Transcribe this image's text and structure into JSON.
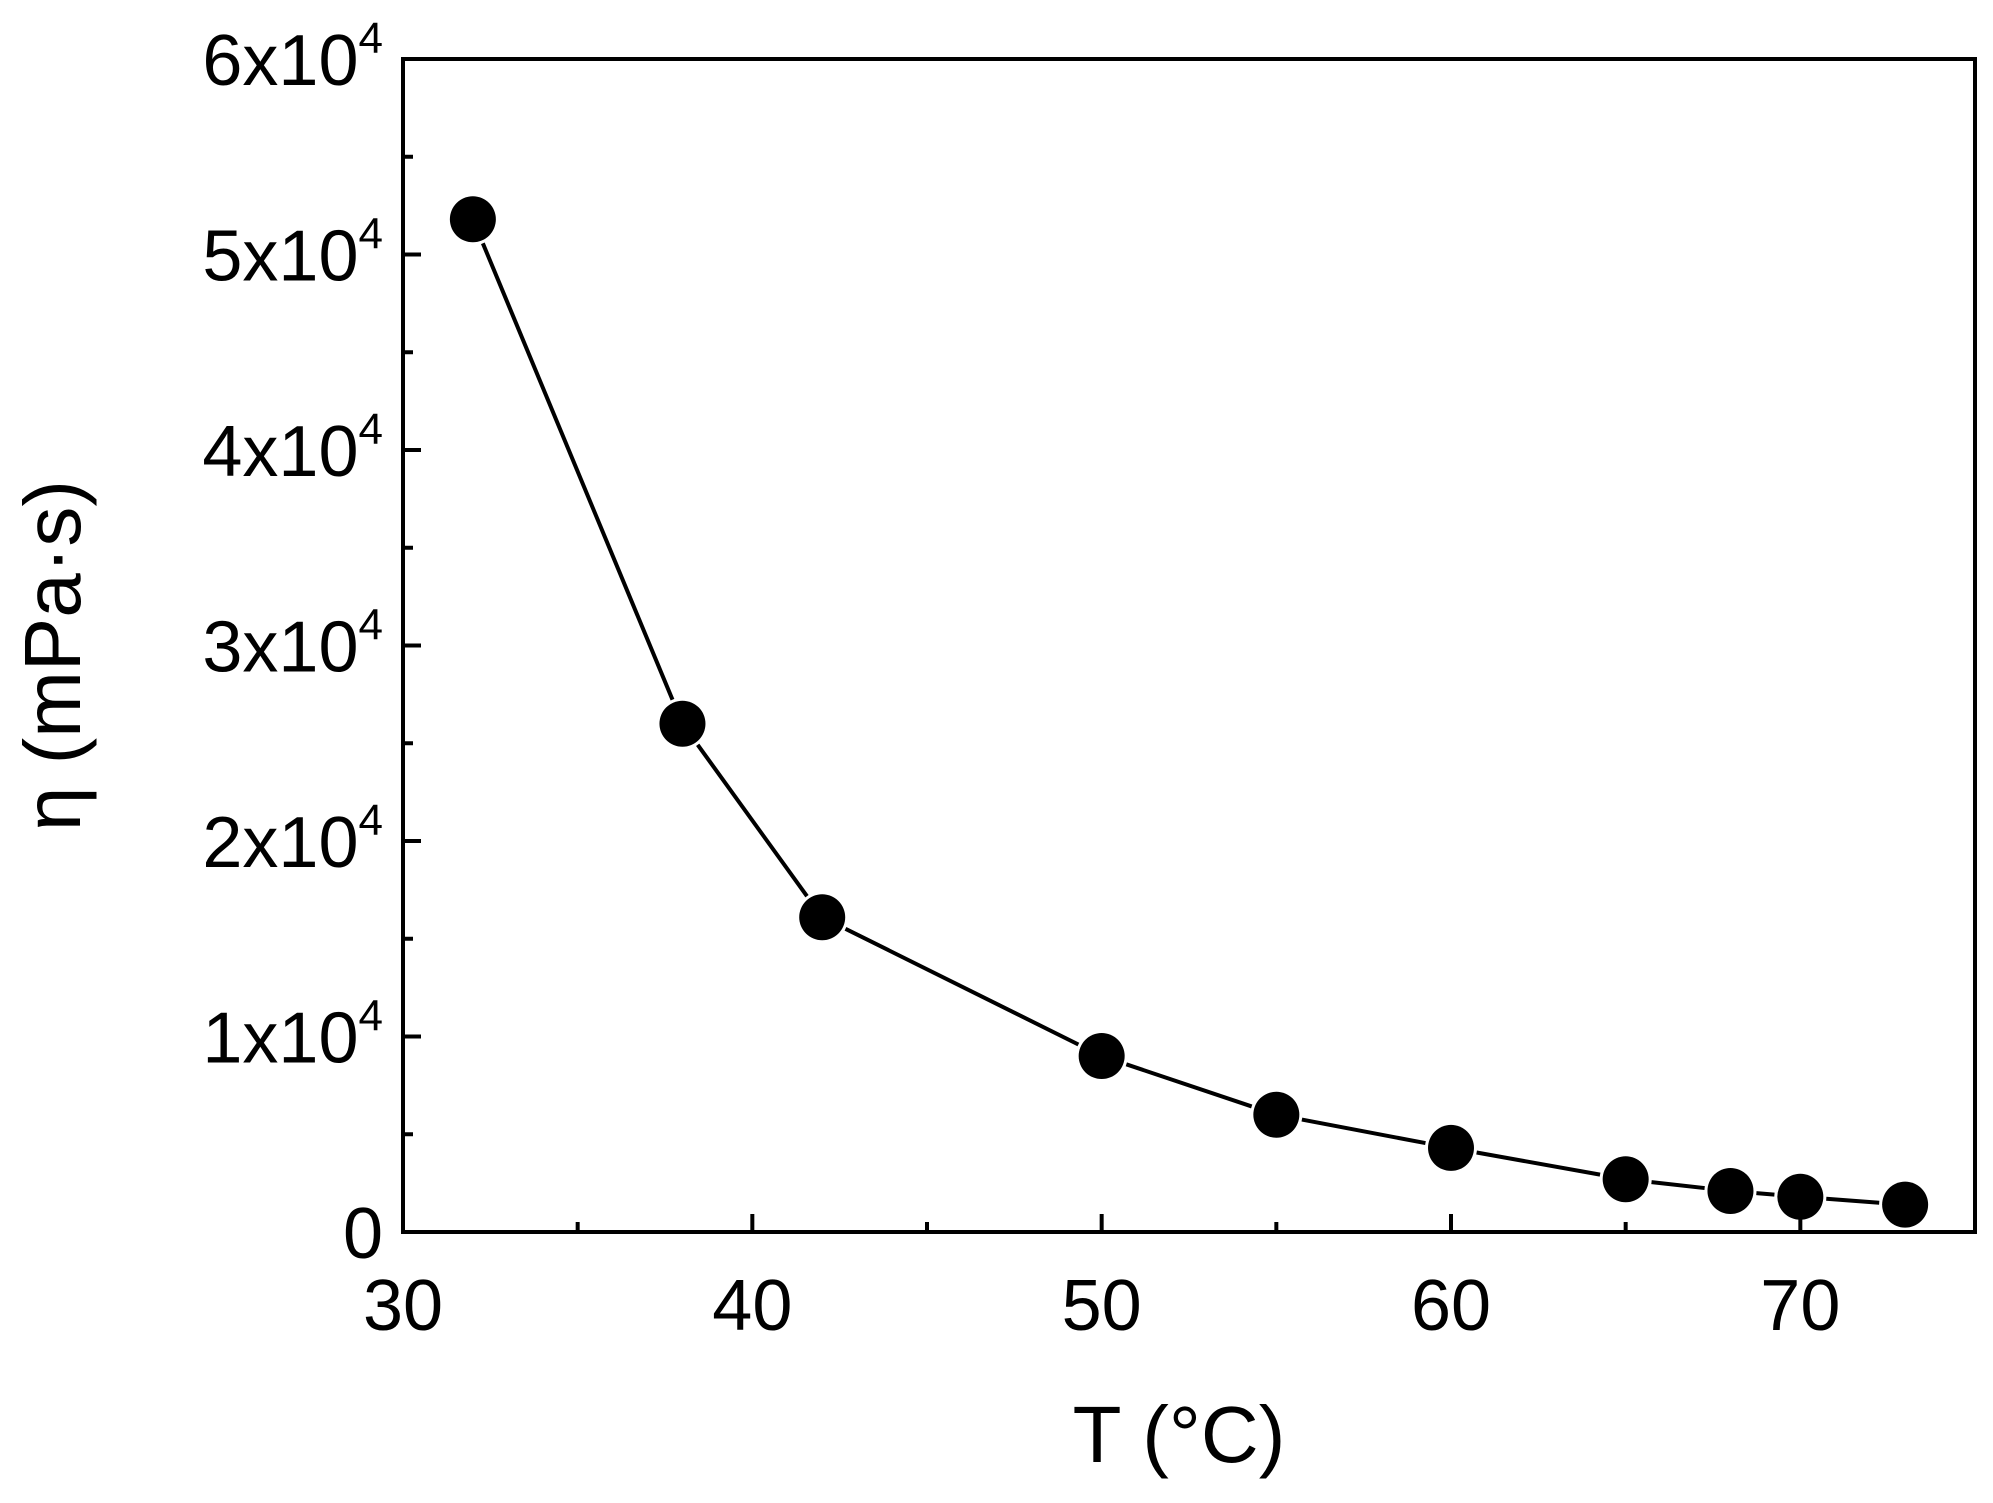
{
  "chart_data": {
    "type": "line",
    "xlabel": "T (°C)",
    "ylabel": "η (mPa·s)",
    "xlim": [
      30,
      75
    ],
    "ylim": [
      0,
      60000
    ],
    "x_ticks": [
      {
        "value": 30,
        "label": "30"
      },
      {
        "value": 40,
        "label": "40"
      },
      {
        "value": 50,
        "label": "50"
      },
      {
        "value": 60,
        "label": "60"
      },
      {
        "value": 70,
        "label": "70"
      }
    ],
    "x_minor_ticks": [
      35,
      45,
      55,
      65,
      75
    ],
    "y_ticks": [
      {
        "value": 0,
        "mantissa": "0",
        "exponent": ""
      },
      {
        "value": 10000,
        "mantissa": "1x10",
        "exponent": "4"
      },
      {
        "value": 20000,
        "mantissa": "2x10",
        "exponent": "4"
      },
      {
        "value": 30000,
        "mantissa": "3x10",
        "exponent": "4"
      },
      {
        "value": 40000,
        "mantissa": "4x10",
        "exponent": "4"
      },
      {
        "value": 50000,
        "mantissa": "5x10",
        "exponent": "4"
      },
      {
        "value": 60000,
        "mantissa": "6x10",
        "exponent": "4"
      }
    ],
    "y_minor_ticks": [
      5000,
      15000,
      25000,
      35000,
      45000,
      55000
    ],
    "grid": false,
    "legend": "none",
    "series": [
      {
        "marker": "filled-circle",
        "color": "#000000",
        "x": [
          32,
          38,
          42,
          50,
          55,
          60,
          65,
          68,
          70,
          73
        ],
        "y": [
          51800,
          26000,
          16100,
          9000,
          6000,
          4300,
          2700,
          2100,
          1800,
          1400
        ]
      }
    ]
  }
}
